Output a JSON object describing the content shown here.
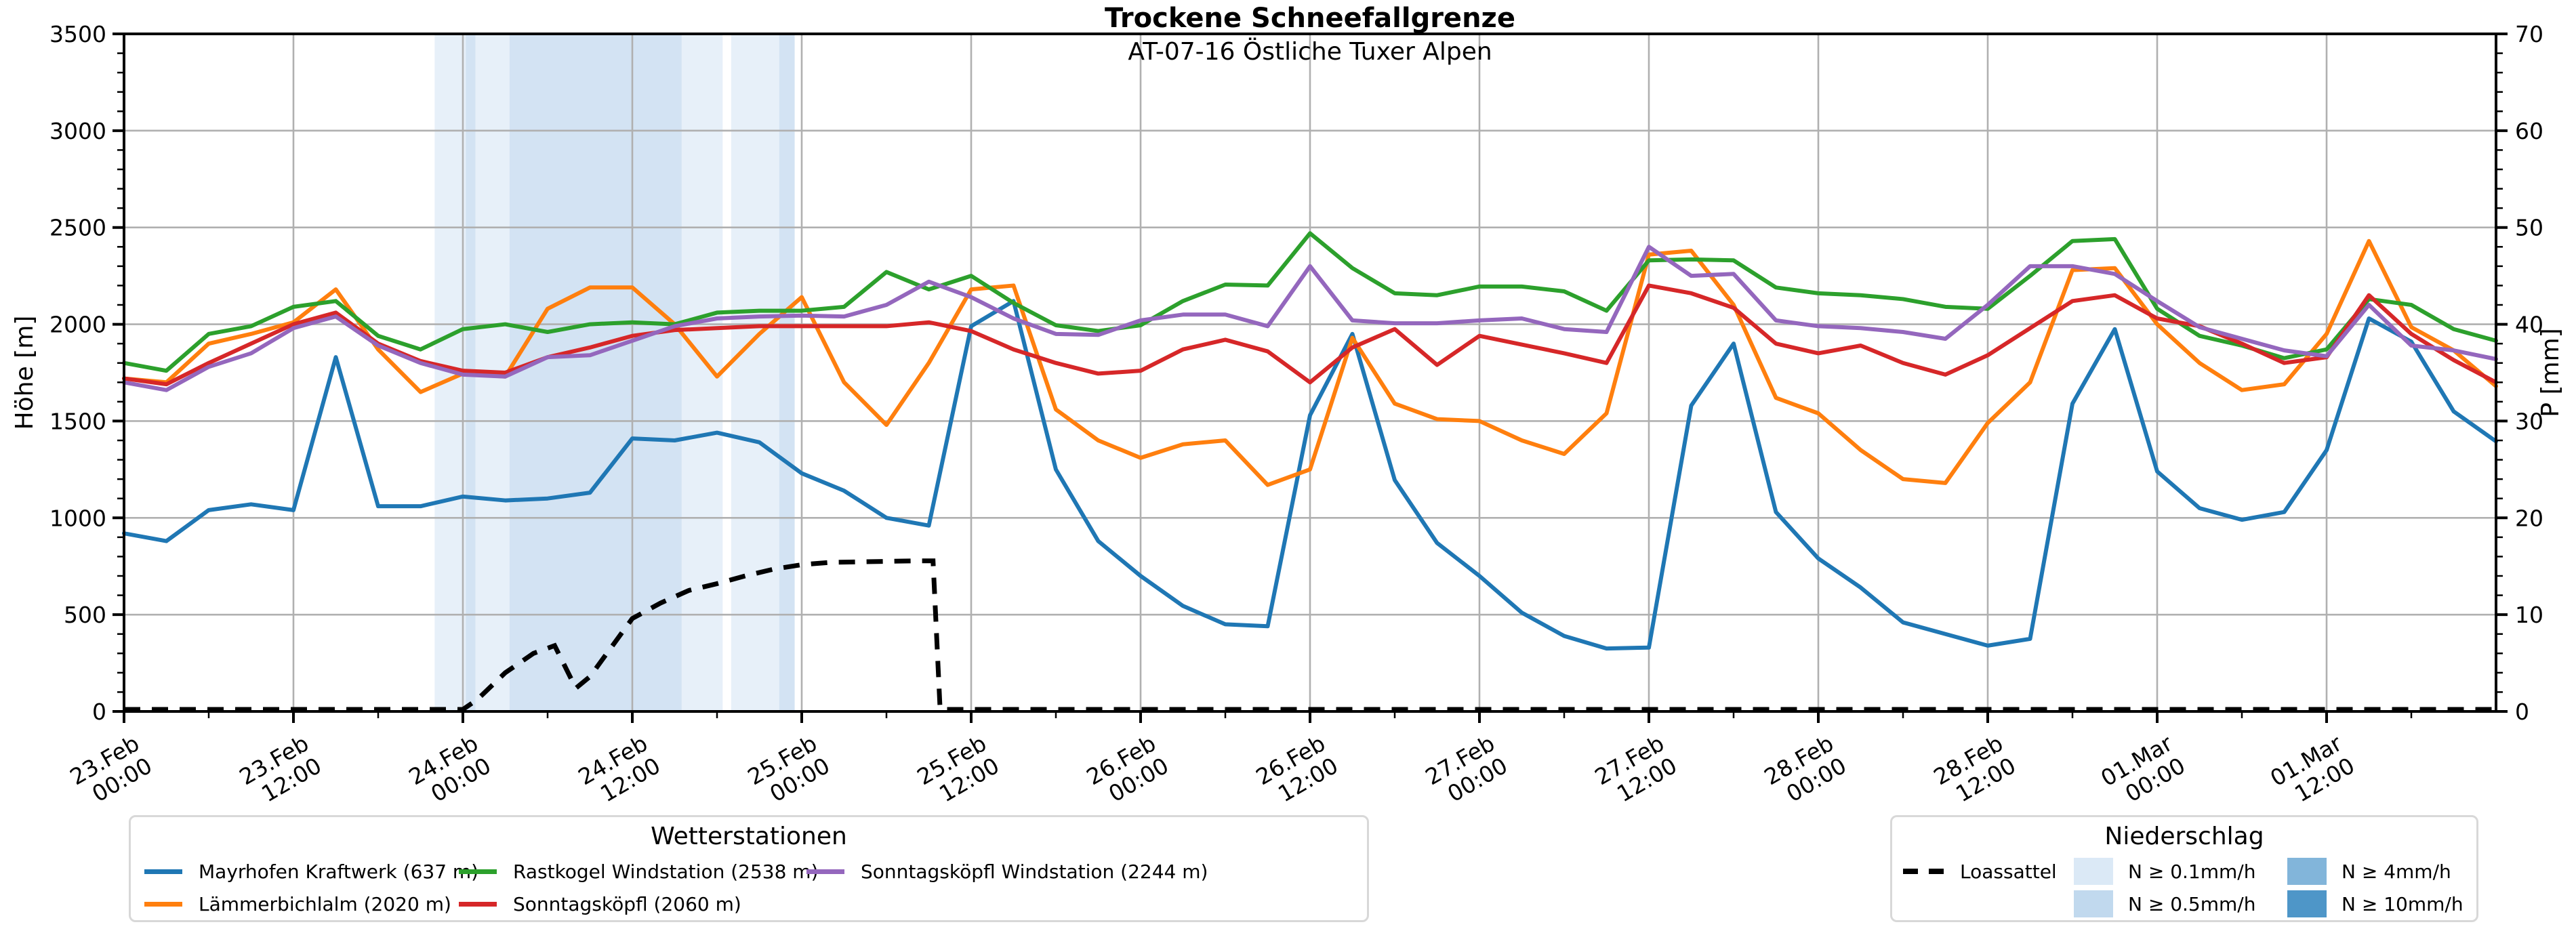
{
  "title": "Trockene Schneefallgrenze",
  "subtitle": "AT-07-16 Östliche Tuxer Alpen",
  "legend_stations": {
    "title": "Wetterstationen"
  },
  "legend_precip": {
    "title": "Niederschlag"
  },
  "chart_data": {
    "type": "line",
    "title": "Trockene Schneefallgrenze",
    "subtitle": "AT-07-16 Östliche Tuxer Alpen",
    "grid": "on",
    "x_axis": {
      "unit": "hours since 23.Feb 00:00",
      "start_hour": 0,
      "end_hour": 168,
      "major_tick_step_h": 12,
      "minor_tick_step_h": 6,
      "tick_labels": [
        {
          "d": "23.Feb",
          "t": "00:00"
        },
        {
          "d": "23.Feb",
          "t": "12:00"
        },
        {
          "d": "24.Feb",
          "t": "00:00"
        },
        {
          "d": "24.Feb",
          "t": "12:00"
        },
        {
          "d": "25.Feb",
          "t": "00:00"
        },
        {
          "d": "25.Feb",
          "t": "12:00"
        },
        {
          "d": "26.Feb",
          "t": "00:00"
        },
        {
          "d": "26.Feb",
          "t": "12:00"
        },
        {
          "d": "27.Feb",
          "t": "00:00"
        },
        {
          "d": "27.Feb",
          "t": "12:00"
        },
        {
          "d": "28.Feb",
          "t": "00:00"
        },
        {
          "d": "28.Feb",
          "t": "12:00"
        },
        {
          "d": "01.Mar",
          "t": "00:00"
        },
        {
          "d": "01.Mar",
          "t": "12:00"
        }
      ]
    },
    "y_left": {
      "label": "Höhe [m]",
      "min": 0,
      "max": 3500,
      "ticks": [
        0,
        500,
        1000,
        1500,
        2000,
        2500,
        3000,
        3500
      ],
      "minor_step": 100
    },
    "y_right": {
      "label": "P [mm]",
      "min": 0,
      "max": 70,
      "ticks": [
        0,
        10,
        20,
        30,
        40,
        50,
        60,
        70
      ],
      "minor_step": 2
    },
    "x_hours": [
      0,
      3,
      6,
      9,
      12,
      15,
      18,
      21,
      24,
      27,
      30,
      33,
      36,
      39,
      42,
      45,
      48,
      51,
      54,
      57,
      60,
      63,
      66,
      69,
      72,
      75,
      78,
      81,
      84,
      87,
      90,
      93,
      96,
      99,
      102,
      105,
      108,
      111,
      114,
      117,
      120,
      123,
      126,
      129,
      132,
      135,
      138,
      141,
      144,
      147,
      150,
      153,
      156,
      159,
      162,
      165,
      168
    ],
    "series": [
      {
        "name": "Mayrhofen Kraftwerk (637 m)",
        "color": "#1f77b4",
        "values": [
          920,
          880,
          1040,
          1070,
          1040,
          1830,
          1060,
          1060,
          1110,
          1090,
          1100,
          1130,
          1410,
          1400,
          1440,
          1390,
          1230,
          1140,
          1000,
          960,
          1990,
          2120,
          1250,
          880,
          700,
          545,
          450,
          440,
          1530,
          1950,
          1195,
          870,
          700,
          510,
          390,
          325,
          330,
          1580,
          1900,
          1030,
          790,
          640,
          460,
          400,
          340,
          375,
          1590,
          1975,
          1240,
          1050,
          990,
          1030,
          1350,
          2030,
          1910,
          1550,
          1395
        ]
      },
      {
        "name": "Lämmerbichlalm (2020 m)",
        "color": "#ff7f0e",
        "values": [
          1720,
          1700,
          1900,
          1950,
          2010,
          2180,
          1870,
          1650,
          1745,
          1730,
          2080,
          2190,
          2190,
          2000,
          1730,
          1950,
          2140,
          1700,
          1480,
          1800,
          2180,
          2200,
          1560,
          1400,
          1310,
          1380,
          1400,
          1170,
          1250,
          1930,
          1590,
          1510,
          1500,
          1400,
          1330,
          1540,
          2360,
          2380,
          2100,
          1620,
          1540,
          1350,
          1200,
          1180,
          1490,
          1700,
          2280,
          2290,
          2000,
          1800,
          1660,
          1690,
          1950,
          2430,
          1985,
          1865,
          1680
        ]
      },
      {
        "name": "Rastkogel Windstation (2538 m)",
        "color": "#2ca02c",
        "values": [
          1800,
          1760,
          1950,
          1990,
          2090,
          2120,
          1940,
          1870,
          1975,
          2000,
          1960,
          2000,
          2010,
          2000,
          2060,
          2070,
          2070,
          2090,
          2270,
          2180,
          2250,
          2110,
          1995,
          1965,
          1995,
          2120,
          2205,
          2200,
          2470,
          2290,
          2160,
          2150,
          2195,
          2195,
          2170,
          2070,
          2330,
          2335,
          2330,
          2190,
          2160,
          2150,
          2130,
          2090,
          2080,
          2250,
          2430,
          2440,
          2080,
          1940,
          1890,
          1825,
          1870,
          2130,
          2100,
          1975,
          1915
        ]
      },
      {
        "name": "Sonntagsköpfl (2060 m)",
        "color": "#d62728",
        "values": [
          1720,
          1690,
          1800,
          1900,
          2000,
          2060,
          1900,
          1810,
          1760,
          1750,
          1830,
          1880,
          1940,
          1970,
          1980,
          1990,
          1990,
          1990,
          1990,
          2010,
          1965,
          1870,
          1800,
          1745,
          1760,
          1870,
          1920,
          1860,
          1700,
          1880,
          1975,
          1790,
          1940,
          1895,
          1850,
          1800,
          2200,
          2160,
          2085,
          1900,
          1850,
          1890,
          1800,
          1740,
          1840,
          1980,
          2120,
          2150,
          2030,
          1990,
          1900,
          1800,
          1830,
          2150,
          1950,
          1815,
          1700
        ]
      },
      {
        "name": "Sonntagsköpfl Windstation (2244 m)",
        "color": "#9467bd",
        "values": [
          1700,
          1660,
          1780,
          1850,
          1980,
          2040,
          1890,
          1800,
          1740,
          1730,
          1830,
          1840,
          1915,
          1990,
          2030,
          2040,
          2045,
          2040,
          2100,
          2220,
          2140,
          2030,
          1950,
          1945,
          2020,
          2050,
          2050,
          1990,
          2300,
          2020,
          2005,
          2005,
          2020,
          2030,
          1975,
          1960,
          2400,
          2250,
          2260,
          2020,
          1990,
          1980,
          1960,
          1925,
          2100,
          2300,
          2300,
          2260,
          2120,
          1985,
          1925,
          1865,
          1835,
          2100,
          1890,
          1865,
          1820
        ]
      }
    ],
    "loassattel": {
      "label": "Loassattel",
      "color": "#000000",
      "dashed": true,
      "points": [
        [
          0,
          0
        ],
        [
          24,
          0
        ],
        [
          25,
          60
        ],
        [
          27,
          200
        ],
        [
          29,
          300
        ],
        [
          30.5,
          340
        ],
        [
          32,
          120
        ],
        [
          33,
          180
        ],
        [
          34.5,
          330
        ],
        [
          36,
          480
        ],
        [
          38,
          560
        ],
        [
          40,
          625
        ],
        [
          42,
          660
        ],
        [
          44,
          700
        ],
        [
          46,
          735
        ],
        [
          48,
          758
        ],
        [
          50,
          770
        ],
        [
          56,
          778
        ],
        [
          57.3,
          778
        ],
        [
          57.8,
          0
        ],
        [
          168,
          0
        ]
      ]
    },
    "precip_bands": [
      {
        "from_h": 22,
        "to_h": 24.2,
        "level": "0.1"
      },
      {
        "from_h": 24.2,
        "to_h": 24.9,
        "level": "0.5"
      },
      {
        "from_h": 24.9,
        "to_h": 27.3,
        "level": "0.1"
      },
      {
        "from_h": 27.3,
        "to_h": 39.5,
        "level": "0.5"
      },
      {
        "from_h": 39.5,
        "to_h": 42.4,
        "level": "0.1"
      },
      {
        "from_h": 43,
        "to_h": 46.4,
        "level": "0.1"
      },
      {
        "from_h": 46.4,
        "to_h": 47.5,
        "level": "0.5"
      }
    ],
    "band_levels": [
      {
        "level": "0.1",
        "label": "N ≥ 0.1mm/h",
        "color": "#dbe9f6",
        "plot_color": "#e7f0f9"
      },
      {
        "level": "0.5",
        "label": "N ≥ 0.5mm/h",
        "color": "#c1d9ee",
        "plot_color": "#d3e3f3"
      },
      {
        "level": "4",
        "label": "N ≥ 4mm/h",
        "color": "#82b5da",
        "plot_color": "#9cc4e0"
      },
      {
        "level": "10",
        "label": "N ≥ 10mm/h",
        "color": "#4e96c8",
        "plot_color": "#5f9fcd"
      }
    ]
  }
}
